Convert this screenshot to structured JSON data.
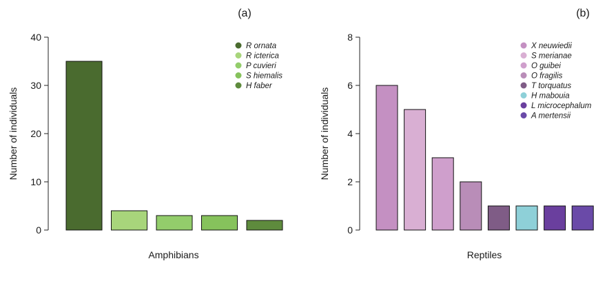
{
  "chart_data": [
    {
      "panel_label": "(a)",
      "type": "bar",
      "xlabel": "Amphibians",
      "ylabel": "Number of individuals",
      "ylim": [
        0,
        40
      ],
      "yticks": [
        "0",
        "10",
        "20",
        "30",
        "40"
      ],
      "legend_position": "top-right",
      "categories": [
        "R ornata",
        "R icterica",
        "P cuvieri",
        "S hiemalis",
        "H faber"
      ],
      "values": [
        35,
        4,
        3,
        3,
        2
      ],
      "colors": [
        "#4a6b2f",
        "#a8d57b",
        "#93cd6b",
        "#86c25c",
        "#5e8b3d"
      ]
    },
    {
      "panel_label": "(b)",
      "type": "bar",
      "xlabel": "Reptiles",
      "ylabel": "Number of individuals",
      "ylim": [
        0,
        8
      ],
      "yticks": [
        "0",
        "2",
        "4",
        "6",
        "8"
      ],
      "legend_position": "top-right",
      "categories": [
        "X neuwiedii",
        "S merianae",
        "O guibei",
        "O fragilis",
        "T torquatus",
        "H mabouia",
        "L microcephalum",
        "A mertensii"
      ],
      "values": [
        6,
        5,
        3,
        2,
        1,
        1,
        1,
        1
      ],
      "colors": [
        "#c490c2",
        "#d9afd3",
        "#cf9fcc",
        "#b98db8",
        "#7f5c86",
        "#8ed0d8",
        "#6a3f9e",
        "#6a4aa8"
      ]
    }
  ]
}
